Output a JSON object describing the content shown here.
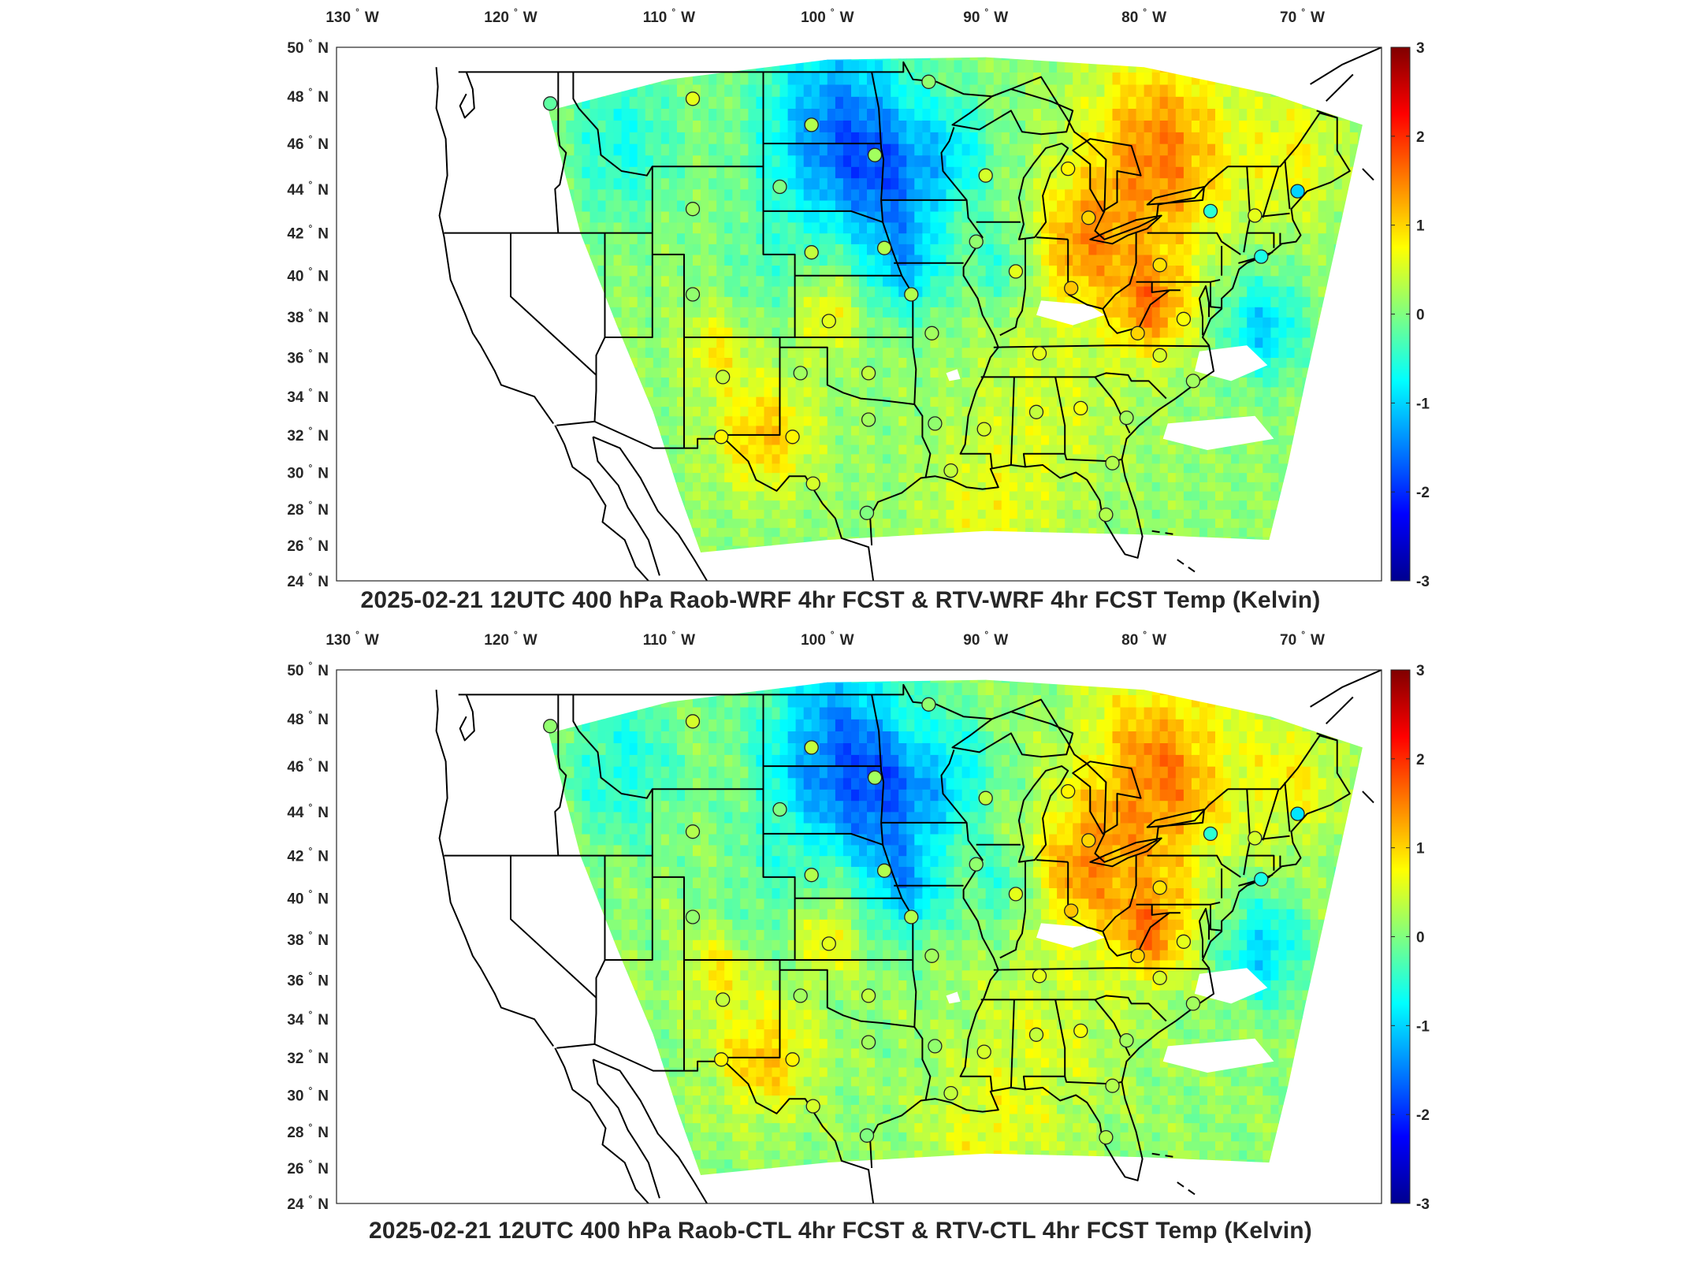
{
  "panels": [
    {
      "title": "2025-02-21 12UTC 400 hPa Raob-WRF 4hr FCST & RTV-WRF 4hr FCST Temp (Kelvin)",
      "variant": "wrf"
    },
    {
      "title": "2025-02-21 12UTC 400 hPa Raob-CTL 4hr FCST & RTV-CTL 4hr FCST Temp (Kelvin)",
      "variant": "ctl"
    }
  ],
  "map": {
    "lon_ticks": [
      "130",
      "120",
      "110",
      "100",
      "90",
      "80",
      "70"
    ],
    "lon_hemisphere": "W",
    "lat_ticks": [
      "50",
      "48",
      "46",
      "44",
      "42",
      "40",
      "38",
      "36",
      "34",
      "32",
      "30",
      "28",
      "26",
      "24"
    ],
    "lat_hemisphere": "N",
    "degree_symbol": "°",
    "lon_range": [
      -131,
      -65
    ],
    "lat_range": [
      24,
      50
    ],
    "projection": "Mercator"
  },
  "colorbar": {
    "ticks": [
      "3",
      "2",
      "1",
      "0",
      "-1",
      "-2",
      "-3"
    ],
    "range": [
      -3,
      3
    ],
    "colormap": "jet",
    "colors": [
      "#00008f",
      "#0000ff",
      "#0080ff",
      "#00ffff",
      "#80ff80",
      "#ffff00",
      "#ff8000",
      "#ff0000",
      "#800000"
    ]
  },
  "raob_stations": [
    {
      "lon": -117.5,
      "lat": 47.7,
      "wrf": -0.2,
      "ctl": 0.1
    },
    {
      "lon": -108.5,
      "lat": 47.9,
      "wrf": 0.6,
      "ctl": 0.5
    },
    {
      "lon": -101.0,
      "lat": 46.8,
      "wrf": 0.3,
      "ctl": 0.4
    },
    {
      "lon": -97.0,
      "lat": 45.5,
      "wrf": 0.2,
      "ctl": 0.2
    },
    {
      "lon": -93.6,
      "lat": 48.6,
      "wrf": 0.1,
      "ctl": 0.1
    },
    {
      "lon": -90.0,
      "lat": 44.6,
      "wrf": 0.5,
      "ctl": 0.4
    },
    {
      "lon": -103.0,
      "lat": 44.1,
      "wrf": 0.0,
      "ctl": 0.0
    },
    {
      "lon": -108.5,
      "lat": 43.1,
      "wrf": 0.2,
      "ctl": 0.3
    },
    {
      "lon": -101.0,
      "lat": 41.1,
      "wrf": 0.4,
      "ctl": 0.3
    },
    {
      "lon": -96.4,
      "lat": 41.3,
      "wrf": 0.3,
      "ctl": 0.3
    },
    {
      "lon": -90.6,
      "lat": 41.6,
      "wrf": 0.1,
      "ctl": 0.1
    },
    {
      "lon": -88.1,
      "lat": 40.2,
      "wrf": 0.6,
      "ctl": 0.6
    },
    {
      "lon": -84.8,
      "lat": 44.9,
      "wrf": 0.8,
      "ctl": 0.8
    },
    {
      "lon": -83.5,
      "lat": 42.7,
      "wrf": 1.0,
      "ctl": 1.0
    },
    {
      "lon": -79.0,
      "lat": 40.5,
      "wrf": 0.9,
      "ctl": 0.9
    },
    {
      "lon": -75.8,
      "lat": 43.0,
      "wrf": -0.5,
      "ctl": -0.5
    },
    {
      "lon": -73.0,
      "lat": 42.8,
      "wrf": 0.6,
      "ctl": 0.5
    },
    {
      "lon": -70.3,
      "lat": 43.9,
      "wrf": -1.0,
      "ctl": -0.9
    },
    {
      "lon": -72.6,
      "lat": 40.9,
      "wrf": -0.6,
      "ctl": -0.6
    },
    {
      "lon": -77.5,
      "lat": 37.9,
      "wrf": 0.7,
      "ctl": 0.6
    },
    {
      "lon": -80.4,
      "lat": 37.2,
      "wrf": 1.0,
      "ctl": 1.0
    },
    {
      "lon": -84.6,
      "lat": 39.4,
      "wrf": 1.1,
      "ctl": 1.1
    },
    {
      "lon": -86.6,
      "lat": 36.2,
      "wrf": 0.6,
      "ctl": 0.6
    },
    {
      "lon": -79.0,
      "lat": 36.1,
      "wrf": 0.5,
      "ctl": 0.5
    },
    {
      "lon": -76.9,
      "lat": 34.8,
      "wrf": 0.2,
      "ctl": 0.2
    },
    {
      "lon": -81.1,
      "lat": 32.9,
      "wrf": 0.2,
      "ctl": 0.2
    },
    {
      "lon": -84.0,
      "lat": 33.4,
      "wrf": 0.7,
      "ctl": 0.7
    },
    {
      "lon": -86.8,
      "lat": 33.2,
      "wrf": 0.4,
      "ctl": 0.4
    },
    {
      "lon": -90.1,
      "lat": 32.3,
      "wrf": 0.5,
      "ctl": 0.5
    },
    {
      "lon": -82.0,
      "lat": 30.5,
      "wrf": 0.3,
      "ctl": 0.3
    },
    {
      "lon": -82.4,
      "lat": 27.7,
      "wrf": 0.3,
      "ctl": 0.3
    },
    {
      "lon": -92.2,
      "lat": 30.1,
      "wrf": 0.4,
      "ctl": 0.4
    },
    {
      "lon": -93.2,
      "lat": 32.6,
      "wrf": 0.1,
      "ctl": 0.1
    },
    {
      "lon": -97.5,
      "lat": 27.8,
      "wrf": 0.0,
      "ctl": 0.0
    },
    {
      "lon": -100.9,
      "lat": 29.4,
      "wrf": 0.5,
      "ctl": 0.5
    },
    {
      "lon": -102.2,
      "lat": 31.9,
      "wrf": 0.8,
      "ctl": 0.8
    },
    {
      "lon": -106.7,
      "lat": 31.9,
      "wrf": 0.8,
      "ctl": 0.8
    },
    {
      "lon": -106.6,
      "lat": 35.0,
      "wrf": 0.4,
      "ctl": 0.4
    },
    {
      "lon": -101.7,
      "lat": 35.2,
      "wrf": 0.2,
      "ctl": 0.2
    },
    {
      "lon": -97.4,
      "lat": 35.2,
      "wrf": 0.4,
      "ctl": 0.4
    },
    {
      "lon": -97.4,
      "lat": 32.8,
      "wrf": 0.2,
      "ctl": 0.2
    },
    {
      "lon": -99.9,
      "lat": 37.8,
      "wrf": 0.6,
      "ctl": 0.6
    },
    {
      "lon": -94.7,
      "lat": 39.1,
      "wrf": 0.3,
      "ctl": 0.3
    },
    {
      "lon": -93.4,
      "lat": 37.2,
      "wrf": 0.2,
      "ctl": 0.2
    },
    {
      "lon": -108.5,
      "lat": 39.1,
      "wrf": 0.1,
      "ctl": 0.1
    }
  ]
}
